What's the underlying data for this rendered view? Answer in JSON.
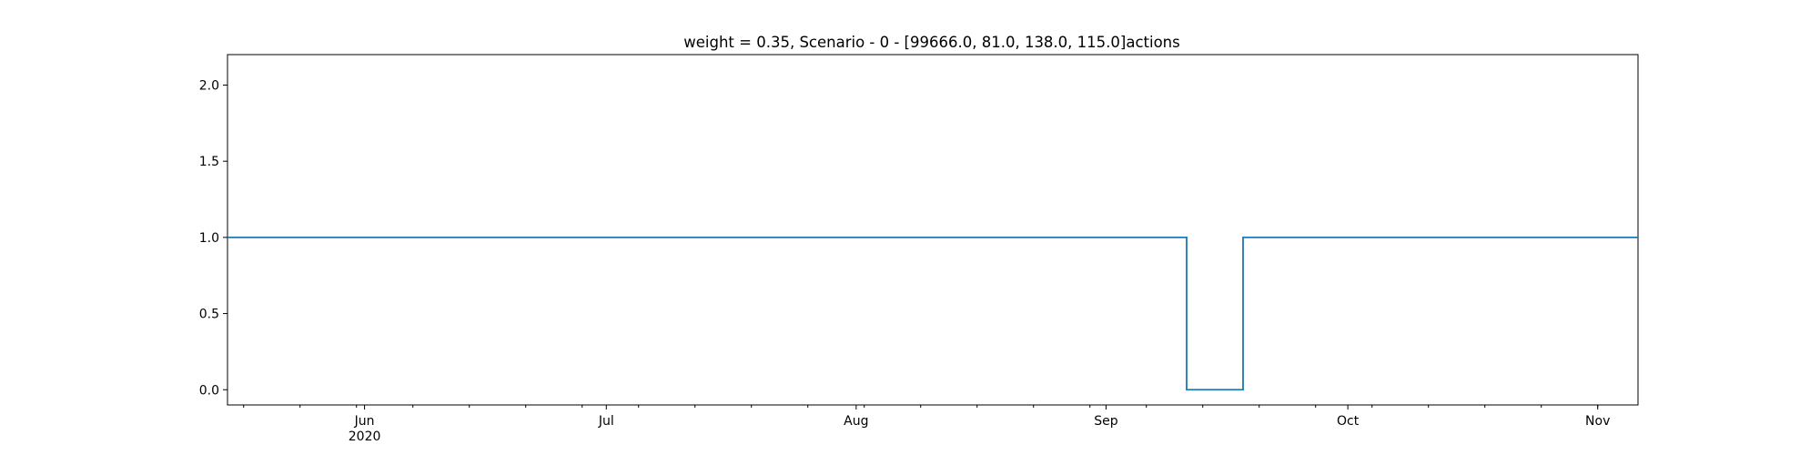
{
  "chart_data": {
    "type": "line",
    "title": "weight = 0.35, Scenario - 0 - [99666.0, 81.0, 138.0, 115.0]actions",
    "xlabel": "",
    "ylabel": "",
    "x_axis": {
      "type": "date",
      "range": [
        "2020-05-15",
        "2020-11-06"
      ],
      "major_ticks": [
        {
          "date": "2020-06-01",
          "label": "Jun",
          "sublabel": "2020"
        },
        {
          "date": "2020-07-01",
          "label": "Jul",
          "sublabel": ""
        },
        {
          "date": "2020-08-01",
          "label": "Aug",
          "sublabel": ""
        },
        {
          "date": "2020-09-01",
          "label": "Sep",
          "sublabel": ""
        },
        {
          "date": "2020-10-01",
          "label": "Oct",
          "sublabel": ""
        },
        {
          "date": "2020-11-01",
          "label": "Nov",
          "sublabel": ""
        }
      ],
      "minor_tick_interval": "weekly (Sundays)"
    },
    "ylim": [
      -0.1,
      2.2
    ],
    "y_ticks": [
      0.0,
      0.5,
      1.0,
      1.5,
      2.0
    ],
    "y_tick_labels": [
      "0.0",
      "0.5",
      "1.0",
      "1.5",
      "2.0"
    ],
    "grid": false,
    "step": "post",
    "series": [
      {
        "color": "#1f77b4",
        "points": [
          {
            "x": "2020-05-15",
            "y": 1
          },
          {
            "x": "2020-09-11",
            "y": 0
          },
          {
            "x": "2020-09-18",
            "y": 1
          },
          {
            "x": "2020-11-06",
            "y": 1
          }
        ]
      }
    ]
  }
}
